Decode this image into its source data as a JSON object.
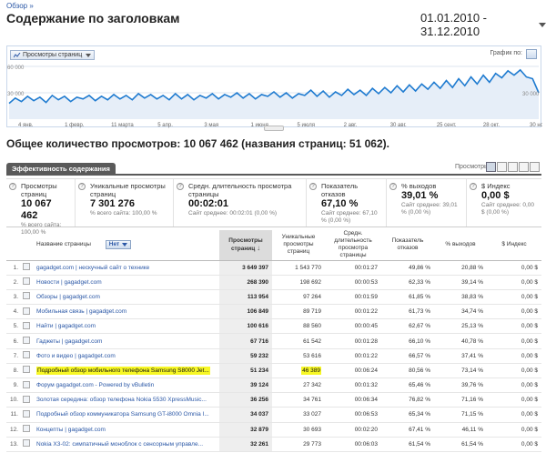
{
  "breadcrumb": "Обзор »",
  "title": "Содержание по заголовкам",
  "date_range": "01.01.2010 - 31.12.2010",
  "chart_toolbar": {
    "metric_label": "Просмотры страниц",
    "graph_by": "График по:"
  },
  "chart_data": {
    "type": "area",
    "yticks": [
      "60 000",
      "30 000",
      "30 000"
    ],
    "x_tick_labels": [
      "4 янв.",
      "1 февр.",
      "11 марта",
      "5 апр.",
      "3 мая",
      "1 июня",
      "5 июля",
      "2 авг.",
      "30 авг.",
      "25 сент.",
      "28 окт.",
      "30 нояб."
    ],
    "ylim": [
      0,
      60000
    ],
    "values": [
      18000,
      24000,
      20000,
      26000,
      21000,
      25000,
      19000,
      27000,
      22000,
      26000,
      20000,
      25000,
      23000,
      27000,
      21000,
      26000,
      22000,
      28000,
      23000,
      27000,
      22000,
      29000,
      24000,
      28000,
      23000,
      27000,
      22000,
      29000,
      23000,
      28000,
      22000,
      27000,
      24000,
      29000,
      23000,
      28000,
      25000,
      30000,
      24000,
      29000,
      23000,
      28000,
      26000,
      31000,
      25000,
      30000,
      24000,
      29000,
      27000,
      33000,
      26000,
      32000,
      25000,
      31000,
      27000,
      34000,
      28000,
      33000,
      27000,
      35000,
      29000,
      36000,
      30000,
      38000,
      31000,
      39000,
      32000,
      40000,
      34000,
      42000,
      35000,
      44000,
      36000,
      46000,
      38000,
      48000,
      40000,
      50000,
      42000,
      52000,
      47000,
      55000,
      50000,
      56000,
      48000,
      46000,
      30000
    ]
  },
  "summary": "Общее количество просмотров: 10 067 462 (названия страниц: 51 062).",
  "tab_label": "Эффективность содержания",
  "views_label": "Просмотры",
  "metrics": [
    {
      "name": "Просмотры страниц",
      "value": "10 067 462",
      "sub": "% всего сайта: 100,00 %"
    },
    {
      "name": "Уникальные просмотры страниц",
      "value": "7 301 276",
      "sub": "% всего сайта: 100,00 %"
    },
    {
      "name": "Средн. длительность просмотра страницы",
      "value": "00:02:01",
      "sub": "Сайт среднее: 00:02:01 (0,00 %)"
    },
    {
      "name": "Показатель отказов",
      "value": "67,10 %",
      "sub": "Сайт среднее: 67,10 % (0,00 %)"
    },
    {
      "name": "% выходов",
      "value": "39,01 %",
      "sub": "Сайт среднее: 39,01 % (0,00 %)"
    },
    {
      "name": "$ Индекс",
      "value": "0,00 $",
      "sub": "Сайт среднее: 0,00 $ (0,00 %)"
    }
  ],
  "table": {
    "headers": {
      "page": "Название страницы",
      "filter": "Нет",
      "views": "Просмотры страниц",
      "unique": "Уникальные просмотры страниц",
      "duration": "Средн. длительность просмотра страницы",
      "bounce": "Показатель отказов",
      "exit": "% выходов",
      "index": "$ Индекс"
    },
    "rows": [
      {
        "n": "1.",
        "page": "gagadget.com | нескучный сайт о технике",
        "views": "3 649 397",
        "unique": "1 543 770",
        "duration": "00:01:27",
        "bounce": "49,86 %",
        "exit": "20,88 %",
        "index": "0,00 $"
      },
      {
        "n": "2.",
        "page": "Новости | gagadget.com",
        "views": "268 390",
        "unique": "198 692",
        "duration": "00:00:53",
        "bounce": "62,33 %",
        "exit": "39,14 %",
        "index": "0,00 $"
      },
      {
        "n": "3.",
        "page": "Обзоры | gagadget.com",
        "views": "113 954",
        "unique": "97 264",
        "duration": "00:01:59",
        "bounce": "61,85 %",
        "exit": "38,83 %",
        "index": "0,00 $"
      },
      {
        "n": "4.",
        "page": "Мобильная связь | gagadget.com",
        "views": "106 849",
        "unique": "89 719",
        "duration": "00:01:22",
        "bounce": "61,73 %",
        "exit": "34,74 %",
        "index": "0,00 $"
      },
      {
        "n": "5.",
        "page": "Найти | gagadget.com",
        "views": "100 616",
        "unique": "88 560",
        "duration": "00:00:45",
        "bounce": "62,67 %",
        "exit": "25,13 %",
        "index": "0,00 $"
      },
      {
        "n": "6.",
        "page": "Гаджеты | gagadget.com",
        "views": "67 716",
        "unique": "61 542",
        "duration": "00:01:28",
        "bounce": "66,10 %",
        "exit": "40,78 %",
        "index": "0,00 $"
      },
      {
        "n": "7.",
        "page": "Фото и видео | gagadget.com",
        "views": "59 232",
        "unique": "53 616",
        "duration": "00:01:22",
        "bounce": "66,57 %",
        "exit": "37,41 %",
        "index": "0,00 $"
      },
      {
        "n": "8.",
        "page": "Подробный обзор мобильного телефона Samsung S8000 Jet...",
        "views": "51 234",
        "unique": "46 389",
        "duration": "00:06:24",
        "bounce": "80,56 %",
        "exit": "73,14 %",
        "index": "0,00 $",
        "highlight": true
      },
      {
        "n": "9.",
        "page": "Форум gagadget.com - Powered by vBulletin",
        "views": "39 124",
        "unique": "27 342",
        "duration": "00:01:32",
        "bounce": "65,46 %",
        "exit": "39,76 %",
        "index": "0,00 $"
      },
      {
        "n": "10.",
        "page": "Золотая середина: обзор телефона Nokia 5530 XpressMusic...",
        "views": "36 256",
        "unique": "34 761",
        "duration": "00:06:34",
        "bounce": "76,82 %",
        "exit": "71,16 %",
        "index": "0,00 $"
      },
      {
        "n": "11.",
        "page": "Подробный обзор коммуникатора Samsung GT-i8000 Omnia I...",
        "views": "34 037",
        "unique": "33 027",
        "duration": "00:06:53",
        "bounce": "65,34 %",
        "exit": "71,15 %",
        "index": "0,00 $"
      },
      {
        "n": "12.",
        "page": "Концепты | gagadget.com",
        "views": "32 879",
        "unique": "30 693",
        "duration": "00:02:20",
        "bounce": "67,41 %",
        "exit": "46,11 %",
        "index": "0,00 $"
      },
      {
        "n": "13.",
        "page": "Nokia X3-02: симпатичный моноблок с сенсорным управле...",
        "views": "32 261",
        "unique": "29 773",
        "duration": "00:06:03",
        "bounce": "61,54 %",
        "exit": "61,54 %",
        "index": "0,00 $"
      }
    ]
  }
}
